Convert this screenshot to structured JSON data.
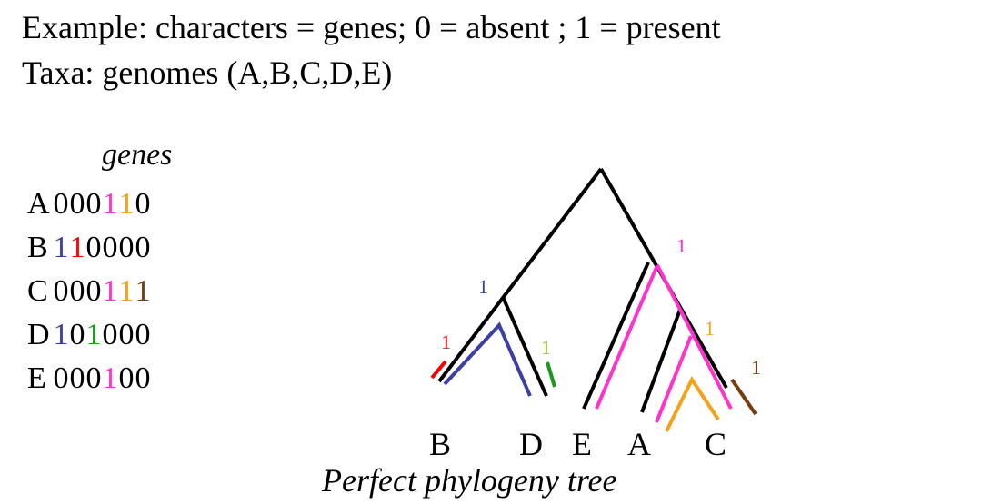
{
  "heading": {
    "line1": "Example: characters = genes; 0 = absent ; 1 = present",
    "line2": "Taxa: genomes (A,B,C,D,E)"
  },
  "matrix": {
    "heading": "genes",
    "rows": [
      {
        "taxon": "A",
        "cells": [
          {
            "v": "0",
            "color": "#000000"
          },
          {
            "v": "0",
            "color": "#000000"
          },
          {
            "v": "0",
            "color": "#000000"
          },
          {
            "v": "1",
            "color": "#ff33cc"
          },
          {
            "v": "1",
            "color": "#f5a21b"
          },
          {
            "v": "0",
            "color": "#000000"
          }
        ]
      },
      {
        "taxon": "B",
        "cells": [
          {
            "v": "1",
            "color": "#3b3fa6"
          },
          {
            "v": "1",
            "color": "#ff0000"
          },
          {
            "v": "0",
            "color": "#000000"
          },
          {
            "v": "0",
            "color": "#000000"
          },
          {
            "v": "0",
            "color": "#000000"
          },
          {
            "v": "0",
            "color": "#000000"
          }
        ]
      },
      {
        "taxon": "C",
        "cells": [
          {
            "v": "0",
            "color": "#000000"
          },
          {
            "v": "0",
            "color": "#000000"
          },
          {
            "v": "0",
            "color": "#000000"
          },
          {
            "v": "1",
            "color": "#ff33cc"
          },
          {
            "v": "1",
            "color": "#f5a21b"
          },
          {
            "v": "1",
            "color": "#7a3b10"
          }
        ]
      },
      {
        "taxon": "D",
        "cells": [
          {
            "v": "1",
            "color": "#3b3fa6"
          },
          {
            "v": "0",
            "color": "#000000"
          },
          {
            "v": "1",
            "color": "#1a9a1a"
          },
          {
            "v": "0",
            "color": "#000000"
          },
          {
            "v": "0",
            "color": "#000000"
          },
          {
            "v": "0",
            "color": "#000000"
          }
        ]
      },
      {
        "taxon": "E",
        "cells": [
          {
            "v": "0",
            "color": "#000000"
          },
          {
            "v": "0",
            "color": "#000000"
          },
          {
            "v": "0",
            "color": "#000000"
          },
          {
            "v": "1",
            "color": "#ff33cc"
          },
          {
            "v": "0",
            "color": "#000000"
          },
          {
            "v": "0",
            "color": "#000000"
          }
        ]
      }
    ]
  },
  "tree": {
    "leaves": [
      "B",
      "D",
      "E",
      "A",
      "C"
    ],
    "mutation_labels": [
      {
        "text": "1",
        "color": "#ff33cc"
      },
      {
        "text": "1",
        "color": "#3b3fa6"
      },
      {
        "text": "1",
        "color": "#ff0000"
      },
      {
        "text": "1",
        "color": "#8dbb2a"
      },
      {
        "text": "1",
        "color": "#f5a21b"
      },
      {
        "text": "1",
        "color": "#7a3b10"
      }
    ]
  },
  "caption": "Perfect phylogeny tree"
}
